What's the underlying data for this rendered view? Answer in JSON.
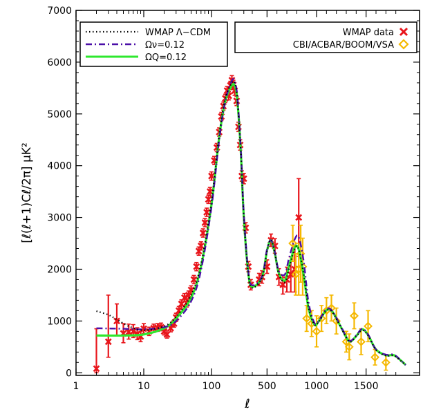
{
  "chart_data": {
    "type": "line",
    "title": "",
    "xlabel": "ℓ",
    "ylabel": "[ℓ(ℓ+1)Cℓ/2π] μK²",
    "x_scale": "piecewise (log below ℓ≈400, linear above)",
    "xlim": [
      1,
      1900
    ],
    "ylim": [
      -50,
      7000
    ],
    "x_ticks": [
      1,
      10,
      100,
      500,
      1000,
      1500
    ],
    "x_tick_labels": [
      "1",
      "10",
      "100",
      "500",
      "1000",
      "1500"
    ],
    "y_ticks": [
      0,
      1000,
      2000,
      3000,
      4000,
      5000,
      6000,
      7000
    ],
    "y_tick_labels": [
      "0",
      "1000",
      "2000",
      "3000",
      "4000",
      "5000",
      "6000",
      "7000"
    ],
    "grid": false,
    "legends": {
      "left": {
        "placement": "top-left",
        "entries": [
          "WMAP Λ−CDM",
          "Ων=0.12",
          "ΩQ=0.12"
        ]
      },
      "right": {
        "placement": "top-right",
        "entries": [
          "WMAP data",
          "CBI/ACBAR/BOOM/VSA"
        ]
      }
    },
    "series": [
      {
        "name": "WMAP Λ−CDM",
        "style": "dotted",
        "color": "#000000",
        "points": [
          [
            2,
            1190
          ],
          [
            3,
            1120
          ],
          [
            4,
            1030
          ],
          [
            6,
            900
          ],
          [
            10,
            820
          ],
          [
            20,
            900
          ],
          [
            30,
            1080
          ],
          [
            50,
            1500
          ],
          [
            70,
            2100
          ],
          [
            100,
            3300
          ],
          [
            130,
            4600
          ],
          [
            160,
            5300
          ],
          [
            200,
            5600
          ],
          [
            220,
            5600
          ],
          [
            240,
            5300
          ],
          [
            270,
            4300
          ],
          [
            300,
            3000
          ],
          [
            350,
            1900
          ],
          [
            400,
            1640
          ],
          [
            450,
            1840
          ],
          [
            500,
            2350
          ],
          [
            540,
            2570
          ],
          [
            580,
            2300
          ],
          [
            620,
            1900
          ],
          [
            680,
            1750
          ],
          [
            720,
            2000
          ],
          [
            780,
            2400
          ],
          [
            820,
            2390
          ],
          [
            870,
            1900
          ],
          [
            920,
            1250
          ],
          [
            980,
            930
          ],
          [
            1020,
            980
          ],
          [
            1100,
            1200
          ],
          [
            1160,
            1170
          ],
          [
            1250,
            860
          ],
          [
            1330,
            600
          ],
          [
            1400,
            700
          ],
          [
            1460,
            820
          ],
          [
            1520,
            720
          ],
          [
            1600,
            440
          ],
          [
            1700,
            330
          ],
          [
            1780,
            330
          ],
          [
            1850,
            230
          ],
          [
            1900,
            150
          ]
        ]
      },
      {
        "name": "Ων=0.12",
        "style": "dash-dot",
        "color": "#4b0fa8",
        "points": [
          [
            2,
            860
          ],
          [
            5,
            850
          ],
          [
            10,
            840
          ],
          [
            20,
            880
          ],
          [
            30,
            1000
          ],
          [
            50,
            1380
          ],
          [
            70,
            1980
          ],
          [
            100,
            3200
          ],
          [
            130,
            4500
          ],
          [
            160,
            5250
          ],
          [
            200,
            5640
          ],
          [
            220,
            5620
          ],
          [
            240,
            5350
          ],
          [
            270,
            4350
          ],
          [
            300,
            3050
          ],
          [
            350,
            1950
          ],
          [
            400,
            1690
          ],
          [
            450,
            1860
          ],
          [
            500,
            2380
          ],
          [
            540,
            2560
          ],
          [
            580,
            2320
          ],
          [
            620,
            1960
          ],
          [
            680,
            1900
          ],
          [
            720,
            2200
          ],
          [
            780,
            2580
          ],
          [
            820,
            2620
          ],
          [
            870,
            2150
          ],
          [
            920,
            1350
          ],
          [
            980,
            960
          ],
          [
            1020,
            1000
          ],
          [
            1100,
            1230
          ],
          [
            1160,
            1190
          ],
          [
            1250,
            880
          ],
          [
            1330,
            620
          ],
          [
            1400,
            720
          ],
          [
            1460,
            850
          ],
          [
            1520,
            740
          ],
          [
            1600,
            450
          ],
          [
            1700,
            350
          ],
          [
            1780,
            350
          ],
          [
            1850,
            240
          ],
          [
            1900,
            150
          ]
        ]
      },
      {
        "name": "ΩQ=0.12",
        "style": "solid",
        "color": "#2ee82e",
        "points": [
          [
            2,
            720
          ],
          [
            5,
            720
          ],
          [
            10,
            740
          ],
          [
            20,
            860
          ],
          [
            30,
            1050
          ],
          [
            50,
            1450
          ],
          [
            70,
            2050
          ],
          [
            100,
            3250
          ],
          [
            130,
            4550
          ],
          [
            160,
            5250
          ],
          [
            200,
            5550
          ],
          [
            220,
            5540
          ],
          [
            240,
            5280
          ],
          [
            270,
            4300
          ],
          [
            300,
            3000
          ],
          [
            350,
            1920
          ],
          [
            400,
            1660
          ],
          [
            450,
            1850
          ],
          [
            500,
            2360
          ],
          [
            540,
            2560
          ],
          [
            580,
            2300
          ],
          [
            620,
            1920
          ],
          [
            680,
            1780
          ],
          [
            720,
            2050
          ],
          [
            780,
            2420
          ],
          [
            820,
            2380
          ],
          [
            870,
            1880
          ],
          [
            920,
            1240
          ],
          [
            980,
            930
          ],
          [
            1020,
            990
          ],
          [
            1100,
            1210
          ],
          [
            1160,
            1180
          ],
          [
            1250,
            870
          ],
          [
            1330,
            610
          ],
          [
            1400,
            710
          ],
          [
            1460,
            840
          ],
          [
            1520,
            730
          ],
          [
            1600,
            450
          ],
          [
            1700,
            340
          ],
          [
            1780,
            340
          ],
          [
            1850,
            240
          ],
          [
            1900,
            150
          ]
        ]
      }
    ],
    "data_sets": [
      {
        "name": "WMAP data",
        "marker": "x",
        "color": "#e8151b",
        "points": [
          [
            2,
            80,
            0,
            850
          ],
          [
            3,
            600,
            300,
            1500
          ],
          [
            4,
            1000,
            720,
            1330
          ],
          [
            5,
            760,
            580,
            950
          ],
          [
            6,
            790,
            650,
            940
          ],
          [
            7,
            800,
            680,
            930
          ],
          [
            8,
            750,
            640,
            870
          ],
          [
            9,
            700,
            600,
            800
          ],
          [
            10,
            850,
            760,
            950
          ],
          [
            12,
            800,
            720,
            880
          ],
          [
            14,
            860,
            780,
            940
          ],
          [
            16,
            870,
            800,
            950
          ],
          [
            18,
            880,
            810,
            960
          ],
          [
            20,
            800,
            730,
            880
          ],
          [
            22,
            740,
            670,
            810
          ],
          [
            25,
            860,
            790,
            930
          ],
          [
            28,
            950,
            880,
            1020
          ],
          [
            30,
            1070,
            990,
            1150
          ],
          [
            33,
            1200,
            1120,
            1280
          ],
          [
            36,
            1330,
            1250,
            1410
          ],
          [
            40,
            1450,
            1370,
            1530
          ],
          [
            43,
            1350,
            1270,
            1430
          ],
          [
            46,
            1500,
            1420,
            1580
          ],
          [
            50,
            1600,
            1520,
            1680
          ],
          [
            55,
            1800,
            1720,
            1880
          ],
          [
            60,
            2050,
            1970,
            2130
          ],
          [
            65,
            2350,
            2270,
            2430
          ],
          [
            70,
            2450,
            2370,
            2530
          ],
          [
            75,
            2700,
            2620,
            2780
          ],
          [
            80,
            2900,
            2820,
            2980
          ],
          [
            85,
            3100,
            3020,
            3180
          ],
          [
            90,
            3350,
            3270,
            3430
          ],
          [
            95,
            3500,
            3420,
            3580
          ],
          [
            100,
            3800,
            3720,
            3880
          ],
          [
            110,
            4100,
            4020,
            4180
          ],
          [
            120,
            4350,
            4270,
            4430
          ],
          [
            130,
            4650,
            4570,
            4730
          ],
          [
            140,
            4950,
            4870,
            5030
          ],
          [
            150,
            5150,
            5070,
            5230
          ],
          [
            160,
            5300,
            5220,
            5380
          ],
          [
            170,
            5450,
            5370,
            5530
          ],
          [
            180,
            5350,
            5270,
            5430
          ],
          [
            190,
            5550,
            5470,
            5630
          ],
          [
            200,
            5650,
            5560,
            5740
          ],
          [
            210,
            5560,
            5470,
            5650
          ],
          [
            220,
            5450,
            5360,
            5540
          ],
          [
            235,
            5250,
            5160,
            5340
          ],
          [
            250,
            4750,
            4660,
            4840
          ],
          [
            265,
            4400,
            4300,
            4500
          ],
          [
            280,
            3800,
            3700,
            3900
          ],
          [
            300,
            3750,
            3650,
            3850
          ],
          [
            320,
            2800,
            2700,
            2900
          ],
          [
            350,
            2050,
            1950,
            2150
          ],
          [
            380,
            1700,
            1600,
            1800
          ],
          [
            420,
            1800,
            1680,
            1920
          ],
          [
            450,
            1850,
            1730,
            1970
          ],
          [
            500,
            2050,
            1920,
            2180
          ],
          [
            540,
            2560,
            2440,
            2680
          ],
          [
            580,
            2450,
            2310,
            2590
          ],
          [
            620,
            1850,
            1690,
            2010
          ],
          [
            660,
            1700,
            1520,
            1880
          ],
          [
            700,
            1800,
            1560,
            2040
          ],
          [
            740,
            1900,
            1560,
            2240
          ],
          [
            780,
            2000,
            1560,
            2440
          ],
          [
            820,
            3000,
            2250,
            3750
          ]
        ]
      },
      {
        "name": "CBI/ACBAR/BOOM/VSA",
        "marker": "diamond",
        "color": "#f5b800",
        "points": [
          [
            760,
            2500,
            2150,
            2850
          ],
          [
            790,
            1900,
            1500,
            2300
          ],
          [
            820,
            2000,
            1500,
            2500
          ],
          [
            840,
            2300,
            1750,
            2850
          ],
          [
            860,
            2050,
            1500,
            2600
          ],
          [
            900,
            1050,
            800,
            1300
          ],
          [
            950,
            950,
            700,
            1200
          ],
          [
            1000,
            800,
            500,
            1100
          ],
          [
            1050,
            1050,
            800,
            1300
          ],
          [
            1100,
            1200,
            950,
            1450
          ],
          [
            1150,
            1250,
            1000,
            1500
          ],
          [
            1200,
            1000,
            750,
            1250
          ],
          [
            1300,
            600,
            400,
            800
          ],
          [
            1330,
            500,
            250,
            750
          ],
          [
            1380,
            1100,
            850,
            1350
          ],
          [
            1450,
            600,
            350,
            850
          ],
          [
            1520,
            900,
            600,
            1200
          ],
          [
            1590,
            300,
            150,
            450
          ],
          [
            1700,
            200,
            50,
            350
          ]
        ]
      }
    ]
  }
}
